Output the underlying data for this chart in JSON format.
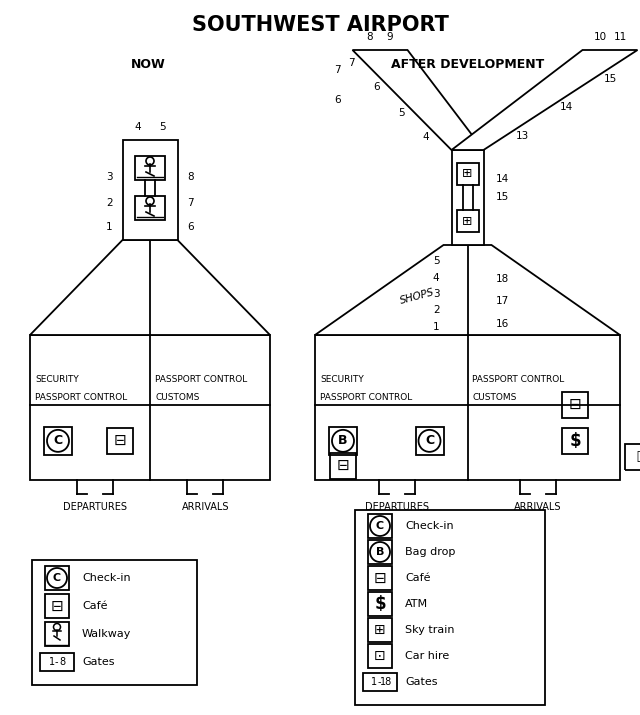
{
  "title": "SOUTHWEST AIRPORT",
  "subtitle_left": "NOW",
  "subtitle_right": "AFTER DEVELOPMENT",
  "bg_color": "#ffffff",
  "line_color": "#000000"
}
